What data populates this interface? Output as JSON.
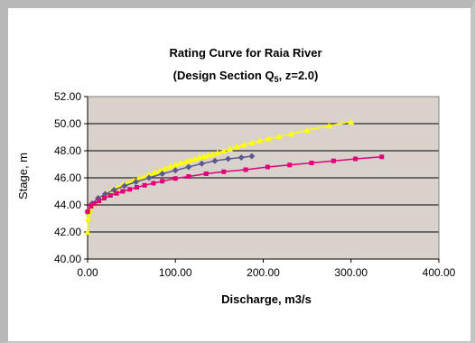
{
  "chart_data": {
    "type": "line",
    "title": "Rating Curve for Raia River",
    "subtitle_prefix": "(Design Section Q",
    "subtitle_sub": "5",
    "subtitle_suffix": ", z=2.0)",
    "xlabel": "Discharge, m3/s",
    "ylabel": "Stage, m",
    "xlim": [
      0,
      400
    ],
    "ylim": [
      40,
      52
    ],
    "x_ticks": [
      "0.00",
      "100.00",
      "200.00",
      "300.00",
      "400.00"
    ],
    "y_ticks": [
      "40.00",
      "42.00",
      "44.00",
      "46.00",
      "48.00",
      "50.00",
      "52.00"
    ],
    "grid": "horizontal",
    "plot_background": "#d9d2cc",
    "series": [
      {
        "color": "#ffff00",
        "marker": "triangle",
        "points": [
          [
            0,
            42.0
          ],
          [
            0.5,
            43.0
          ],
          [
            1,
            43.4
          ],
          [
            2,
            43.6
          ],
          [
            3,
            43.8
          ],
          [
            5,
            44.0
          ],
          [
            10,
            44.3
          ],
          [
            16,
            44.6
          ],
          [
            22,
            44.85
          ],
          [
            28,
            45.1
          ],
          [
            34,
            45.3
          ],
          [
            40,
            45.5
          ],
          [
            46,
            45.65
          ],
          [
            52,
            45.8
          ],
          [
            58,
            45.95
          ],
          [
            64,
            46.1
          ],
          [
            70,
            46.25
          ],
          [
            76,
            46.4
          ],
          [
            82,
            46.55
          ],
          [
            88,
            46.7
          ],
          [
            94,
            46.85
          ],
          [
            100,
            47.0
          ],
          [
            106,
            47.1
          ],
          [
            112,
            47.2
          ],
          [
            117,
            47.3
          ],
          [
            122,
            47.4
          ],
          [
            127,
            47.5
          ],
          [
            132,
            47.6
          ],
          [
            137,
            47.65
          ],
          [
            142,
            47.75
          ],
          [
            148,
            47.85
          ],
          [
            155,
            48.0
          ],
          [
            162,
            48.15
          ],
          [
            170,
            48.3
          ],
          [
            178,
            48.45
          ],
          [
            187,
            48.6
          ],
          [
            196,
            48.75
          ],
          [
            206,
            48.9
          ],
          [
            218,
            49.05
          ],
          [
            232,
            49.25
          ],
          [
            250,
            49.5
          ],
          [
            275,
            49.85
          ],
          [
            300,
            50.15
          ]
        ]
      },
      {
        "color": "#5a5a8c",
        "marker": "diamond",
        "points": [
          [
            0,
            43.5
          ],
          [
            5,
            44.1
          ],
          [
            12,
            44.5
          ],
          [
            20,
            44.8
          ],
          [
            30,
            45.1
          ],
          [
            42,
            45.4
          ],
          [
            55,
            45.7
          ],
          [
            70,
            46.0
          ],
          [
            85,
            46.3
          ],
          [
            100,
            46.55
          ],
          [
            115,
            46.8
          ],
          [
            130,
            47.05
          ],
          [
            145,
            47.25
          ],
          [
            160,
            47.4
          ],
          [
            175,
            47.5
          ],
          [
            187,
            47.6
          ]
        ]
      },
      {
        "color": "#e0007a",
        "marker": "square",
        "points": [
          [
            0,
            43.5
          ],
          [
            4,
            43.9
          ],
          [
            8,
            44.1
          ],
          [
            13,
            44.3
          ],
          [
            19,
            44.5
          ],
          [
            26,
            44.7
          ],
          [
            33,
            44.85
          ],
          [
            40,
            45.0
          ],
          [
            48,
            45.15
          ],
          [
            56,
            45.3
          ],
          [
            65,
            45.45
          ],
          [
            75,
            45.6
          ],
          [
            85,
            45.75
          ],
          [
            100,
            45.95
          ],
          [
            115,
            46.1
          ],
          [
            135,
            46.3
          ],
          [
            155,
            46.45
          ],
          [
            180,
            46.6
          ],
          [
            205,
            46.8
          ],
          [
            230,
            46.95
          ],
          [
            255,
            47.1
          ],
          [
            280,
            47.25
          ],
          [
            305,
            47.4
          ],
          [
            335,
            47.55
          ]
        ]
      }
    ]
  }
}
